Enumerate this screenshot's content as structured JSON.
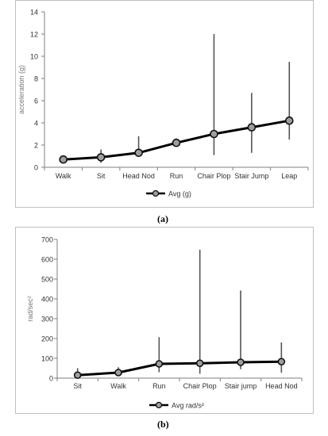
{
  "captions": {
    "a": "(a)",
    "b": "(b)"
  },
  "chart_data": [
    {
      "type": "line",
      "ylabel": "acceleration (g)",
      "ylim": [
        0,
        14
      ],
      "yticks": [
        0,
        2,
        4,
        6,
        8,
        10,
        12,
        14
      ],
      "categories": [
        "Walk",
        "Sit",
        "Head Nod",
        "Run",
        "Chair Plop",
        "Stair Jump",
        "Leap"
      ],
      "series": [
        {
          "name": "Avg (g)",
          "values": [
            0.7,
            0.9,
            1.3,
            2.2,
            3.0,
            3.6,
            4.2
          ],
          "err_low": [
            0.6,
            0.4,
            1.0,
            1.9,
            1.1,
            1.3,
            2.5
          ],
          "err_high": [
            0.9,
            1.6,
            2.8,
            2.6,
            12.0,
            6.7,
            9.5
          ]
        }
      ],
      "grid": false,
      "legend": "bottom",
      "colors": {
        "line": "#000000",
        "marker": "#9e9e9e",
        "axis": "#7f7f7f"
      }
    },
    {
      "type": "line",
      "ylabel": "rad/sec²",
      "ylim": [
        0,
        700
      ],
      "yticks": [
        0,
        100,
        200,
        300,
        400,
        500,
        600,
        700
      ],
      "categories": [
        "Sit",
        "Walk",
        "Run",
        "Chair Plop",
        "Stair jump",
        "Head Nod"
      ],
      "series": [
        {
          "name": "Avg rad/s²",
          "values": [
            15,
            28,
            72,
            75,
            80,
            83
          ],
          "err_low": [
            5,
            18,
            30,
            22,
            45,
            28
          ],
          "err_high": [
            50,
            55,
            207,
            648,
            442,
            180
          ]
        }
      ],
      "grid": false,
      "legend": "bottom",
      "colors": {
        "line": "#000000",
        "marker": "#9e9e9e",
        "axis": "#7f7f7f"
      }
    }
  ]
}
